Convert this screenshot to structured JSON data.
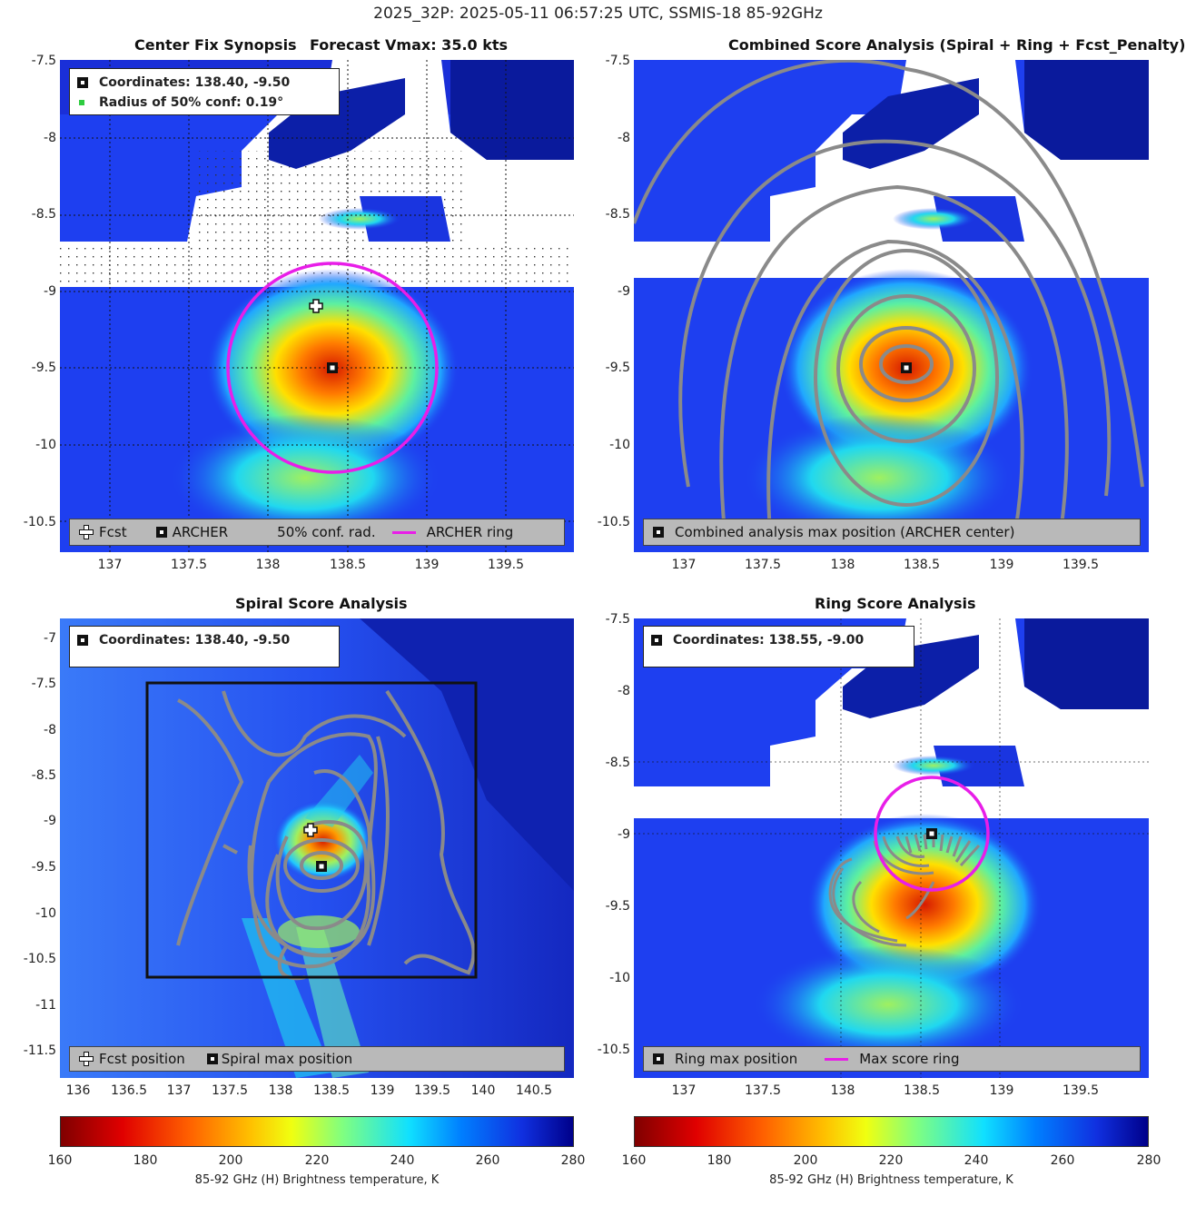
{
  "figure_title": "2025_32P: 2025-05-11 06:57:25 UTC, SSMIS-18 85-92GHz",
  "colors": {
    "fcst_marker": "#ffffff",
    "archer_marker": "#000000",
    "ring": "#e81ee8",
    "contour": "#8a8a8a",
    "conf_dot": "#2ecc40",
    "legend_bg": "#b9b9b9"
  },
  "panels": {
    "synopsis": {
      "title_left": "Center Fix Synopsis",
      "title_right": "Forecast Vmax: 35.0 kts",
      "info": {
        "coordinates": "Coordinates: 138.40, -9.50",
        "radius": "Radius of 50% conf: 0.19°"
      },
      "legend": {
        "fcst": "Fcst",
        "archer": "ARCHER",
        "conf": "50% conf. rad.",
        "ring": "ARCHER ring"
      },
      "y_ticks": [
        "-7.5",
        "-8",
        "-8.5",
        "-9",
        "-9.5",
        "-10",
        "-10.5"
      ],
      "x_ticks": [
        "137",
        "137.5",
        "138",
        "138.5",
        "139",
        "139.5"
      ]
    },
    "combined": {
      "title": "Combined Score Analysis (Spiral + Ring + Fcst_Penalty)",
      "legend": {
        "archer": "Combined analysis max position (ARCHER center)"
      },
      "y_ticks": [
        "-7.5",
        "-8",
        "-8.5",
        "-9",
        "-9.5",
        "-10",
        "-10.5"
      ],
      "x_ticks": [
        "137",
        "137.5",
        "138",
        "138.5",
        "139",
        "139.5"
      ]
    },
    "spiral": {
      "title": "Spiral Score Analysis",
      "info": {
        "coordinates": "Coordinates: 138.40, -9.50"
      },
      "legend": {
        "fcst": "Fcst position",
        "spiral": "Spiral max position"
      },
      "y_ticks": [
        "-7",
        "-7.5",
        "-8",
        "-8.5",
        "-9",
        "-9.5",
        "-10",
        "-10.5",
        "-11",
        "-11.5"
      ],
      "x_ticks": [
        "136",
        "136.5",
        "137",
        "137.5",
        "138",
        "138.5",
        "139",
        "139.5",
        "140",
        "140.5"
      ]
    },
    "ring": {
      "title": "Ring Score Analysis",
      "info": {
        "coordinates": "Coordinates: 138.55, -9.00"
      },
      "legend": {
        "ring_max": "Ring max position",
        "max_ring": "Max score ring"
      },
      "y_ticks": [
        "-7.5",
        "-8",
        "-8.5",
        "-9",
        "-9.5",
        "-10",
        "-10.5"
      ],
      "x_ticks": [
        "137",
        "137.5",
        "138",
        "138.5",
        "139",
        "139.5"
      ]
    }
  },
  "colorbars": {
    "ticks": [
      "160",
      "180",
      "200",
      "220",
      "240",
      "260",
      "280"
    ],
    "label": "85-92 GHz (H) Brightness temperature, K"
  },
  "chart_data": [
    {
      "type": "heatmap",
      "title": "Center Fix Synopsis",
      "subtitle": "Forecast Vmax: 35.0 kts",
      "xlim": [
        136.65,
        139.9
      ],
      "ylim": [
        -10.7,
        -7.5
      ],
      "fcst_position": [
        138.3,
        -9.1
      ],
      "archer_center": [
        138.4,
        -9.5
      ],
      "archer_ring_radius_deg": 0.66,
      "colorscale_range": [
        160,
        280
      ]
    },
    {
      "type": "heatmap",
      "title": "Combined Score Analysis (Spiral + Ring + Fcst_Penalty)",
      "xlim": [
        136.65,
        139.9
      ],
      "ylim": [
        -10.7,
        -7.5
      ],
      "max_position": [
        138.4,
        -9.5
      ],
      "colorscale_range": [
        160,
        280
      ]
    },
    {
      "type": "heatmap",
      "title": "Spiral Score Analysis",
      "xlim": [
        135.85,
        140.9
      ],
      "ylim": [
        -11.8,
        -6.8
      ],
      "fcst_position": [
        138.3,
        -9.1
      ],
      "spiral_max_position": [
        138.4,
        -9.5
      ],
      "search_box": {
        "lon": [
          136.85,
          140.15
        ],
        "lat": [
          -10.7,
          -7.5
        ]
      },
      "colorscale_range": [
        160,
        280
      ]
    },
    {
      "type": "heatmap",
      "title": "Ring Score Analysis",
      "xlim": [
        136.65,
        139.9
      ],
      "ylim": [
        -10.7,
        -7.5
      ],
      "ring_max_position": [
        138.55,
        -9.0
      ],
      "max_score_ring_radius_deg": 0.35,
      "colorscale_range": [
        160,
        280
      ]
    }
  ]
}
